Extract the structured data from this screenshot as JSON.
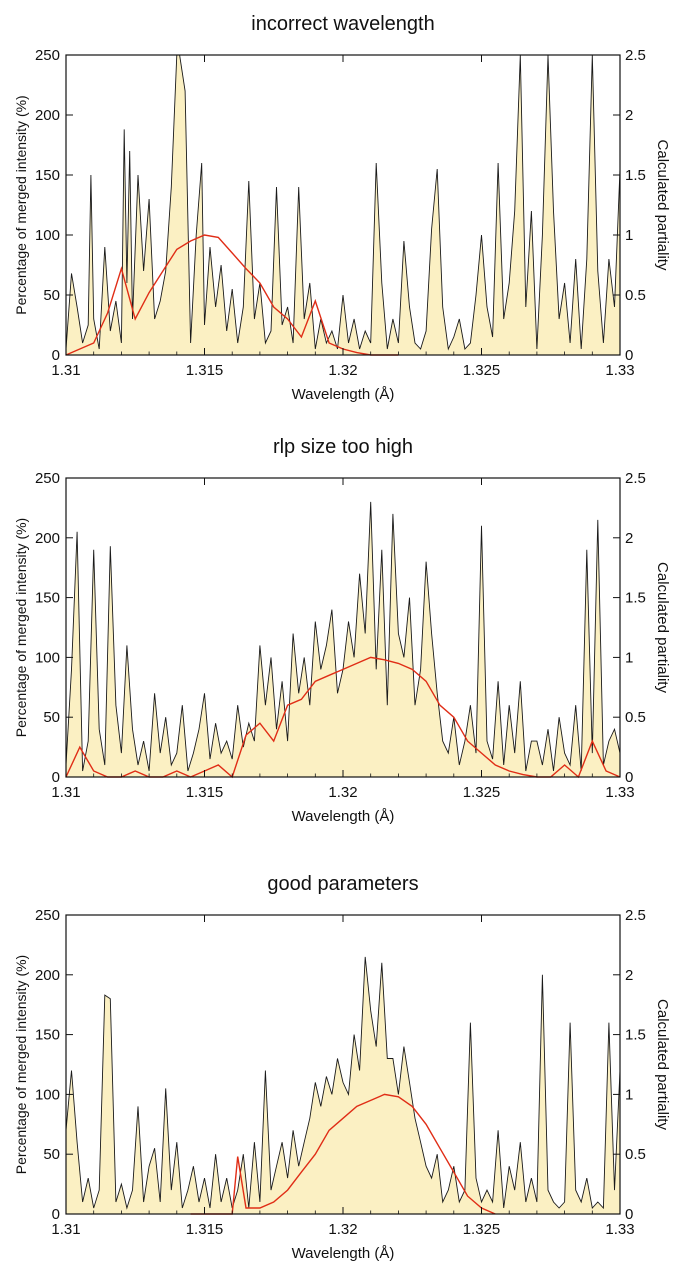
{
  "figure": {
    "xlabel": "Wavelength (Å)",
    "ylabel_left": "Percentage of merged intensity (%)",
    "ylabel_right": "Calculated partiality"
  },
  "colors": {
    "fill": "#fbf0c3",
    "intensity_line": "#1a1a1a",
    "partiality_line": "#e02d16",
    "axis": "#111111"
  },
  "chart_data": [
    {
      "type": "area",
      "title": "incorrect wavelength",
      "xlabel": "Wavelength (Å)",
      "ylabel": "Percentage of merged intensity (%)",
      "y2label": "Calculated partiality",
      "xlim": [
        1.31,
        1.33
      ],
      "ylim": [
        0,
        250
      ],
      "y2lim": [
        0,
        2.5
      ],
      "xticks": [
        "1.31",
        "1.315",
        "1.32",
        "1.325",
        "1.33"
      ],
      "yticks": [
        "0",
        "50",
        "100",
        "150",
        "200",
        "250"
      ],
      "y2ticks": [
        "0",
        "0.5",
        "1",
        "1.5",
        "2",
        "2.5"
      ],
      "grid": false,
      "series": [
        {
          "axis": "left",
          "style": "filled-line",
          "x": [
            1.31,
            1.3102,
            1.3104,
            1.3106,
            1.3108,
            1.3109,
            1.311,
            1.3112,
            1.3114,
            1.3116,
            1.3118,
            1.312,
            1.3121,
            1.3122,
            1.3123,
            1.3124,
            1.3126,
            1.3128,
            1.313,
            1.3132,
            1.3134,
            1.3136,
            1.3138,
            1.314,
            1.3141,
            1.3143,
            1.3145,
            1.3147,
            1.3149,
            1.315,
            1.3152,
            1.3154,
            1.3156,
            1.3158,
            1.316,
            1.3162,
            1.3164,
            1.3166,
            1.3168,
            1.317,
            1.3172,
            1.3174,
            1.3176,
            1.3178,
            1.318,
            1.3182,
            1.3184,
            1.3186,
            1.3188,
            1.319,
            1.3192,
            1.3194,
            1.3196,
            1.3198,
            1.32,
            1.3202,
            1.3204,
            1.3206,
            1.3208,
            1.321,
            1.3212,
            1.3214,
            1.3216,
            1.3218,
            1.322,
            1.3222,
            1.3224,
            1.3226,
            1.3228,
            1.323,
            1.3232,
            1.3234,
            1.3236,
            1.3238,
            1.324,
            1.3242,
            1.3244,
            1.3246,
            1.3248,
            1.325,
            1.3252,
            1.3254,
            1.3256,
            1.3258,
            1.326,
            1.3262,
            1.3264,
            1.3266,
            1.3268,
            1.327,
            1.3272,
            1.3274,
            1.3276,
            1.3278,
            1.328,
            1.3282,
            1.3284,
            1.3286,
            1.3288,
            1.329,
            1.3292,
            1.3294,
            1.3296,
            1.3298,
            1.33
          ],
          "values": [
            5,
            68,
            40,
            10,
            25,
            150,
            30,
            5,
            90,
            20,
            45,
            10,
            188,
            60,
            170,
            30,
            150,
            70,
            130,
            30,
            45,
            70,
            140,
            250,
            250,
            220,
            10,
            100,
            160,
            25,
            90,
            40,
            75,
            20,
            55,
            10,
            40,
            145,
            30,
            60,
            10,
            20,
            140,
            25,
            40,
            10,
            140,
            30,
            60,
            5,
            30,
            10,
            20,
            5,
            50,
            10,
            30,
            5,
            20,
            10,
            160,
            60,
            5,
            30,
            10,
            95,
            40,
            10,
            5,
            20,
            105,
            155,
            40,
            5,
            15,
            30,
            5,
            10,
            50,
            100,
            40,
            15,
            160,
            30,
            60,
            120,
            250,
            40,
            120,
            5,
            100,
            250,
            120,
            30,
            60,
            10,
            80,
            5,
            80,
            250,
            70,
            10,
            80,
            40,
            155
          ]
        },
        {
          "axis": "right",
          "style": "line",
          "x": [
            1.31,
            1.3105,
            1.311,
            1.3115,
            1.312,
            1.3125,
            1.313,
            1.3135,
            1.314,
            1.3145,
            1.315,
            1.3155,
            1.316,
            1.3165,
            1.317,
            1.3175,
            1.318,
            1.3185,
            1.319,
            1.3195,
            1.32,
            1.3205,
            1.321,
            1.3215,
            1.322
          ],
          "values": [
            0.0,
            0.05,
            0.1,
            0.35,
            0.72,
            0.3,
            0.52,
            0.7,
            0.88,
            0.95,
            1.0,
            0.98,
            0.85,
            0.72,
            0.6,
            0.4,
            0.3,
            0.15,
            0.45,
            0.1,
            0.05,
            0.02,
            0.0,
            0.0,
            0.0
          ]
        }
      ]
    },
    {
      "type": "area",
      "title": "rlp size too high",
      "xlabel": "Wavelength (Å)",
      "ylabel": "Percentage of merged intensity (%)",
      "y2label": "Calculated partiality",
      "xlim": [
        1.31,
        1.33
      ],
      "ylim": [
        0,
        250
      ],
      "y2lim": [
        0,
        2.5
      ],
      "xticks": [
        "1.31",
        "1.315",
        "1.32",
        "1.325",
        "1.33"
      ],
      "yticks": [
        "0",
        "50",
        "100",
        "150",
        "200",
        "250"
      ],
      "y2ticks": [
        "0",
        "0.5",
        "1",
        "1.5",
        "2",
        "2.5"
      ],
      "grid": false,
      "series": [
        {
          "axis": "left",
          "style": "filled-line",
          "x": [
            1.31,
            1.3102,
            1.3104,
            1.3106,
            1.3108,
            1.311,
            1.3112,
            1.3114,
            1.3116,
            1.3118,
            1.312,
            1.3122,
            1.3124,
            1.3126,
            1.3128,
            1.313,
            1.3132,
            1.3134,
            1.3136,
            1.3138,
            1.314,
            1.3142,
            1.3144,
            1.3146,
            1.3148,
            1.315,
            1.3152,
            1.3154,
            1.3156,
            1.3158,
            1.316,
            1.3162,
            1.3164,
            1.3166,
            1.3168,
            1.317,
            1.3172,
            1.3174,
            1.3176,
            1.3178,
            1.318,
            1.3182,
            1.3184,
            1.3186,
            1.3188,
            1.319,
            1.3192,
            1.3194,
            1.3196,
            1.3198,
            1.32,
            1.3202,
            1.3204,
            1.3206,
            1.3208,
            1.321,
            1.3212,
            1.3214,
            1.3216,
            1.3218,
            1.322,
            1.3222,
            1.3224,
            1.3226,
            1.3228,
            1.323,
            1.3232,
            1.3234,
            1.3236,
            1.3238,
            1.324,
            1.3242,
            1.3244,
            1.3246,
            1.3248,
            1.325,
            1.3252,
            1.3254,
            1.3256,
            1.3258,
            1.326,
            1.3262,
            1.3264,
            1.3266,
            1.3268,
            1.327,
            1.3272,
            1.3274,
            1.3276,
            1.3278,
            1.328,
            1.3282,
            1.3284,
            1.3286,
            1.3288,
            1.329,
            1.3292,
            1.3294,
            1.3296,
            1.3298,
            1.33
          ],
          "values": [
            10,
            90,
            205,
            5,
            30,
            190,
            40,
            10,
            193,
            60,
            20,
            110,
            40,
            10,
            30,
            5,
            70,
            20,
            50,
            10,
            20,
            60,
            5,
            20,
            40,
            70,
            15,
            45,
            20,
            30,
            15,
            60,
            25,
            45,
            30,
            110,
            60,
            100,
            40,
            80,
            30,
            120,
            70,
            100,
            60,
            130,
            90,
            110,
            140,
            70,
            90,
            130,
            100,
            170,
            120,
            230,
            90,
            190,
            60,
            220,
            120,
            100,
            150,
            60,
            90,
            180,
            120,
            70,
            30,
            20,
            50,
            10,
            30,
            60,
            20,
            210,
            30,
            15,
            80,
            10,
            60,
            20,
            80,
            5,
            30,
            30,
            10,
            40,
            5,
            50,
            20,
            10,
            60,
            5,
            190,
            20,
            215,
            10,
            30,
            40,
            20
          ]
        },
        {
          "axis": "right",
          "style": "line",
          "x": [
            1.31,
            1.3105,
            1.311,
            1.3115,
            1.312,
            1.3125,
            1.313,
            1.3135,
            1.314,
            1.3145,
            1.315,
            1.3155,
            1.316,
            1.3165,
            1.317,
            1.3175,
            1.318,
            1.3185,
            1.319,
            1.3195,
            1.32,
            1.3205,
            1.321,
            1.3215,
            1.322,
            1.3225,
            1.323,
            1.3235,
            1.324,
            1.3245,
            1.325,
            1.3255,
            1.326,
            1.3265,
            1.327,
            1.3275,
            1.328,
            1.3285,
            1.329,
            1.3295,
            1.33
          ],
          "values": [
            0.0,
            0.25,
            0.05,
            0.0,
            0.0,
            0.05,
            0.0,
            0.0,
            0.05,
            0.0,
            0.05,
            0.1,
            0.0,
            0.35,
            0.45,
            0.3,
            0.6,
            0.65,
            0.8,
            0.85,
            0.9,
            0.95,
            1.0,
            0.98,
            0.95,
            0.9,
            0.8,
            0.6,
            0.5,
            0.3,
            0.2,
            0.1,
            0.05,
            0.02,
            0.0,
            0.0,
            0.1,
            0.0,
            0.3,
            0.05,
            0.0
          ]
        }
      ]
    },
    {
      "type": "area",
      "title": "good parameters",
      "xlabel": "Wavelength (Å)",
      "ylabel": "Percentage of merged intensity (%)",
      "y2label": "Calculated partiality",
      "xlim": [
        1.31,
        1.33
      ],
      "ylim": [
        0,
        250
      ],
      "y2lim": [
        0,
        2.5
      ],
      "xticks": [
        "1.31",
        "1.315",
        "1.32",
        "1.325",
        "1.33"
      ],
      "yticks": [
        "0",
        "50",
        "100",
        "150",
        "200",
        "250"
      ],
      "y2ticks": [
        "0",
        "0.5",
        "1",
        "1.5",
        "2",
        "2.5"
      ],
      "grid": false,
      "series": [
        {
          "axis": "left",
          "style": "filled-line",
          "x": [
            1.31,
            1.3102,
            1.3104,
            1.3106,
            1.3108,
            1.311,
            1.3112,
            1.3114,
            1.3116,
            1.3118,
            1.312,
            1.3122,
            1.3124,
            1.3126,
            1.3128,
            1.313,
            1.3132,
            1.3134,
            1.3136,
            1.3138,
            1.314,
            1.3142,
            1.3144,
            1.3146,
            1.3148,
            1.315,
            1.3152,
            1.3154,
            1.3156,
            1.3158,
            1.316,
            1.3162,
            1.3164,
            1.3166,
            1.3168,
            1.317,
            1.3172,
            1.3174,
            1.3176,
            1.3178,
            1.318,
            1.3182,
            1.3184,
            1.3186,
            1.3188,
            1.319,
            1.3192,
            1.3194,
            1.3196,
            1.3198,
            1.32,
            1.3202,
            1.3204,
            1.3206,
            1.3208,
            1.321,
            1.3212,
            1.3214,
            1.3216,
            1.3218,
            1.322,
            1.3222,
            1.3224,
            1.3226,
            1.3228,
            1.323,
            1.3232,
            1.3234,
            1.3236,
            1.3238,
            1.324,
            1.3242,
            1.3244,
            1.3246,
            1.3248,
            1.325,
            1.3252,
            1.3254,
            1.3256,
            1.3258,
            1.326,
            1.3262,
            1.3264,
            1.3266,
            1.3268,
            1.327,
            1.3272,
            1.3274,
            1.3276,
            1.3278,
            1.328,
            1.3282,
            1.3284,
            1.3286,
            1.3288,
            1.329,
            1.3292,
            1.3294,
            1.3296,
            1.3298,
            1.33
          ],
          "values": [
            70,
            120,
            60,
            10,
            30,
            5,
            20,
            183,
            180,
            10,
            25,
            5,
            20,
            90,
            10,
            40,
            55,
            10,
            105,
            20,
            60,
            5,
            20,
            40,
            10,
            30,
            5,
            50,
            10,
            30,
            5,
            20,
            50,
            5,
            60,
            10,
            120,
            20,
            40,
            60,
            30,
            70,
            40,
            60,
            80,
            110,
            90,
            115,
            100,
            130,
            110,
            100,
            150,
            120,
            215,
            170,
            140,
            210,
            130,
            130,
            100,
            140,
            110,
            80,
            60,
            40,
            30,
            50,
            10,
            20,
            40,
            10,
            20,
            160,
            30,
            10,
            20,
            10,
            70,
            5,
            40,
            20,
            60,
            10,
            30,
            10,
            200,
            20,
            10,
            5,
            10,
            160,
            20,
            10,
            30,
            5,
            10,
            5,
            160,
            20,
            120
          ]
        },
        {
          "axis": "right",
          "style": "line",
          "x": [
            1.3145,
            1.315,
            1.3155,
            1.316,
            1.3162,
            1.3165,
            1.317,
            1.3175,
            1.318,
            1.3185,
            1.319,
            1.3195,
            1.32,
            1.3205,
            1.321,
            1.3215,
            1.322,
            1.3225,
            1.323,
            1.3235,
            1.324,
            1.3245,
            1.325,
            1.3255
          ],
          "values": [
            0.0,
            0.0,
            0.0,
            0.0,
            0.48,
            0.05,
            0.05,
            0.1,
            0.2,
            0.35,
            0.5,
            0.7,
            0.8,
            0.9,
            0.95,
            1.0,
            0.98,
            0.9,
            0.75,
            0.55,
            0.35,
            0.15,
            0.05,
            0.0
          ]
        }
      ]
    }
  ]
}
